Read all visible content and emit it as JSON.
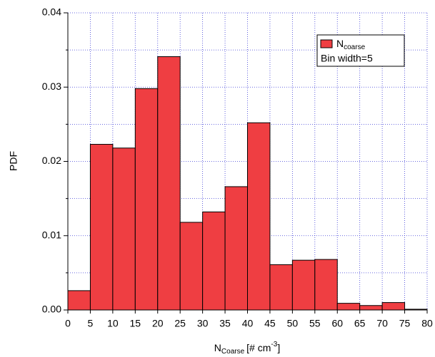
{
  "chart_data": {
    "type": "histogram",
    "bins": [
      0,
      5,
      10,
      15,
      20,
      25,
      30,
      35,
      40,
      45,
      50,
      55,
      60,
      65,
      70,
      75,
      80
    ],
    "series": [
      {
        "name": "N",
        "name_sub": "coarse",
        "color": "#ef3e42",
        "values": [
          0.0026,
          0.0223,
          0.0218,
          0.0298,
          0.0341,
          0.0118,
          0.0132,
          0.0166,
          0.0252,
          0.0061,
          0.0067,
          0.0068,
          0.0009,
          0.0006,
          0.001,
          0.0001
        ]
      }
    ],
    "annotation": "Bin width=5",
    "x_label": {
      "main": "N",
      "sub": "Coarse",
      "unit": "[# cm",
      "sup": "-3",
      "end": "]"
    },
    "y_label": "PDF",
    "xlim": [
      0,
      80
    ],
    "xticks": [
      0,
      5,
      10,
      15,
      20,
      25,
      30,
      35,
      40,
      45,
      50,
      55,
      60,
      65,
      70,
      75,
      80
    ],
    "ylim": [
      0,
      0.04
    ],
    "yticks": [
      {
        "value": 0,
        "label": "0.00"
      },
      0.01,
      0.02,
      0.03,
      0.04
    ],
    "grid": true
  }
}
